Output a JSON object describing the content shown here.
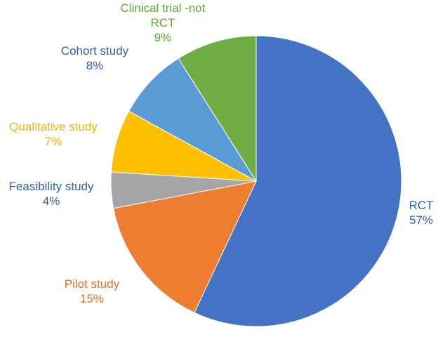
{
  "chart_data": {
    "type": "pie",
    "title": "",
    "start_angle_deg": 0,
    "direction": "clockwise",
    "legend": "none",
    "slices": [
      {
        "label": "RCT",
        "percent_label": "57%",
        "value": 57,
        "color": "#4472C4",
        "label_color": "#2E5FB0"
      },
      {
        "label": "Pilot study",
        "percent_label": "15%",
        "value": 15,
        "color": "#ED7D31",
        "label_color": "#E2721E"
      },
      {
        "label": "Feasibility study",
        "percent_label": "4%",
        "value": 4,
        "color": "#A5A5A5",
        "label_color": "#2E5FB0"
      },
      {
        "label": "Qualitative study",
        "percent_label": "7%",
        "value": 7,
        "color": "#FFC000",
        "label_color": "#F2B600"
      },
      {
        "label": "Cohort study",
        "percent_label": "8%",
        "value": 8,
        "color": "#5B9BD5",
        "label_color": "#2E5FB0"
      },
      {
        "label": "Clinical trial -not RCT",
        "percent_label": "9%",
        "value": 9,
        "color": "#70AD47",
        "label_color": "#5FA33A"
      }
    ]
  }
}
